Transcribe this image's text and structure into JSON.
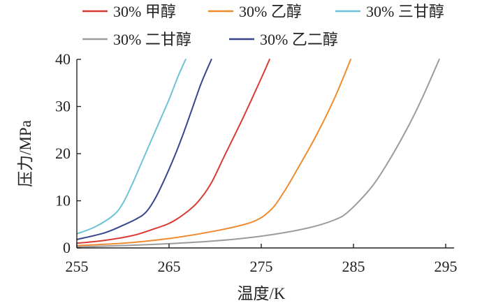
{
  "chart_data": {
    "type": "line",
    "xlabel": "温度/K",
    "ylabel": "压力/MPa",
    "xlim": [
      255,
      295
    ],
    "ylim": [
      0,
      40
    ],
    "xticks": [
      255,
      265,
      275,
      285,
      295
    ],
    "yticks": [
      0,
      10,
      20,
      30,
      40
    ],
    "grid": false,
    "legend": "top",
    "series": [
      {
        "name": "30% 甲醇",
        "color": "#d93b33",
        "x": [
          255,
          258,
          261,
          263,
          265,
          266.5,
          268,
          269.5,
          271,
          273,
          275,
          275.9
        ],
        "y": [
          1.0,
          1.6,
          2.6,
          3.8,
          5.2,
          7.0,
          9.5,
          13.5,
          19.5,
          27.5,
          36.0,
          40.0
        ]
      },
      {
        "name": "30% 乙醇",
        "color": "#f08a2e",
        "x": [
          255,
          260,
          265,
          270,
          274,
          276,
          277.5,
          279,
          281,
          283,
          284.7
        ],
        "y": [
          0.5,
          1.0,
          2.0,
          3.6,
          5.5,
          8.0,
          12.0,
          17.0,
          24.0,
          32.0,
          40.0
        ]
      },
      {
        "name": "30% 三甘醇",
        "color": "#6cc4d2",
        "x": [
          255,
          257,
          259,
          260,
          261,
          262,
          263,
          264,
          265,
          266,
          266.8
        ],
        "y": [
          3.0,
          4.5,
          7.0,
          9.5,
          13.5,
          18.0,
          22.5,
          27.0,
          31.5,
          36.5,
          40.0
        ]
      },
      {
        "name": "30% 二甘醇",
        "color": "#9b9b9b",
        "x": [
          255,
          260,
          265,
          270,
          275,
          280,
          283,
          284.5,
          287,
          289,
          291,
          292.5,
          294.3
        ],
        "y": [
          0.2,
          0.5,
          0.9,
          1.5,
          2.5,
          4.2,
          6.0,
          7.8,
          13.0,
          19.0,
          26.0,
          32.0,
          40.0
        ]
      },
      {
        "name": "30% 乙二醇",
        "color": "#38468e",
        "x": [
          255,
          258,
          260,
          261.5,
          262.5,
          263.5,
          264.5,
          265.5,
          266.5,
          267.5,
          268.5,
          269.6
        ],
        "y": [
          1.8,
          3.2,
          4.8,
          6.2,
          7.6,
          10.5,
          14.5,
          19.0,
          24.0,
          29.5,
          35.0,
          40.0
        ]
      }
    ]
  }
}
